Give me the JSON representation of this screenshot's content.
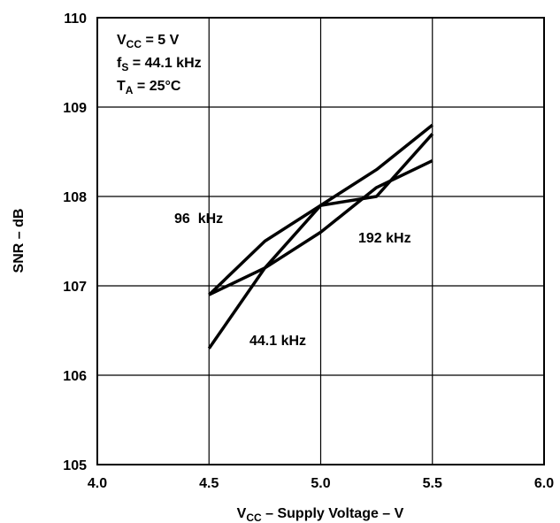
{
  "chart_data": {
    "type": "line",
    "xlabel": {
      "main": "V",
      "sub": "CC",
      "rest": " – Supply Voltage – V"
    },
    "ylabel": "SNR – dB",
    "xlim": [
      4.0,
      6.0
    ],
    "ylim": [
      105,
      110
    ],
    "x_ticks": [
      "4.0",
      "4.5",
      "5.0",
      "5.5",
      "6.0"
    ],
    "y_ticks": [
      "105",
      "106",
      "107",
      "108",
      "109",
      "110"
    ],
    "grid": true,
    "conditions": [
      {
        "main": "V",
        "sub": "CC",
        "rest": " = 5 V"
      },
      {
        "main": "f",
        "sub": "S",
        "rest": " = 44.1 kHz"
      },
      {
        "main": "T",
        "sub": "A",
        "rest": " = 25°C"
      }
    ],
    "series": [
      {
        "name": "96  kHz",
        "x": [
          4.5,
          4.75,
          5.0,
          5.25,
          5.5
        ],
        "y": [
          106.9,
          107.5,
          107.9,
          108.3,
          108.8
        ]
      },
      {
        "name": "192 kHz",
        "x": [
          4.5,
          4.75,
          5.0,
          5.25,
          5.5
        ],
        "y": [
          106.9,
          107.2,
          107.6,
          108.1,
          108.4
        ]
      },
      {
        "name": "44.1 kHz",
        "x": [
          4.5,
          4.75,
          5.0,
          5.25,
          5.5
        ],
        "y": [
          106.3,
          107.2,
          107.9,
          108.0,
          108.7
        ]
      }
    ]
  }
}
